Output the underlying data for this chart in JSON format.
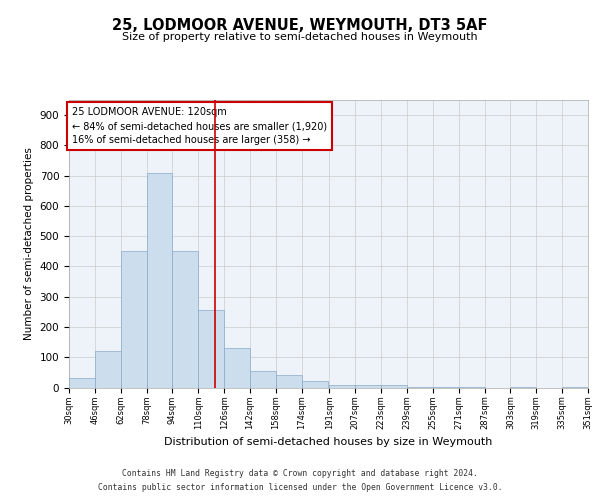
{
  "title1": "25, LODMOOR AVENUE, WEYMOUTH, DT3 5AF",
  "title2": "Size of property relative to semi-detached houses in Weymouth",
  "xlabel": "Distribution of semi-detached houses by size in Weymouth",
  "ylabel": "Number of semi-detached properties",
  "annotation_title": "25 LODMOOR AVENUE: 120sqm",
  "annotation_line1": "← 84% of semi-detached houses are smaller (1,920)",
  "annotation_line2": "16% of semi-detached houses are larger (358) →",
  "bar_color": "#ccdded",
  "bar_edgecolor": "#88aac8",
  "vline_color": "#cc0000",
  "annotation_box_color": "#cc0000",
  "grid_color": "#cccccc",
  "bg_color": "#edf3f8",
  "footnote1": "Contains HM Land Registry data © Crown copyright and database right 2024.",
  "footnote2": "Contains public sector information licensed under the Open Government Licence v3.0.",
  "bins": [
    30,
    46,
    62,
    78,
    94,
    110,
    126,
    142,
    158,
    174,
    191,
    207,
    223,
    239,
    255,
    271,
    287,
    303,
    319,
    335,
    351
  ],
  "counts": [
    30,
    120,
    450,
    710,
    450,
    255,
    130,
    55,
    40,
    20,
    8,
    8,
    8,
    2,
    2,
    2,
    0,
    2,
    0,
    2
  ],
  "property_size": 120,
  "ylim": [
    0,
    950
  ],
  "yticks": [
    0,
    100,
    200,
    300,
    400,
    500,
    600,
    700,
    800,
    900
  ]
}
